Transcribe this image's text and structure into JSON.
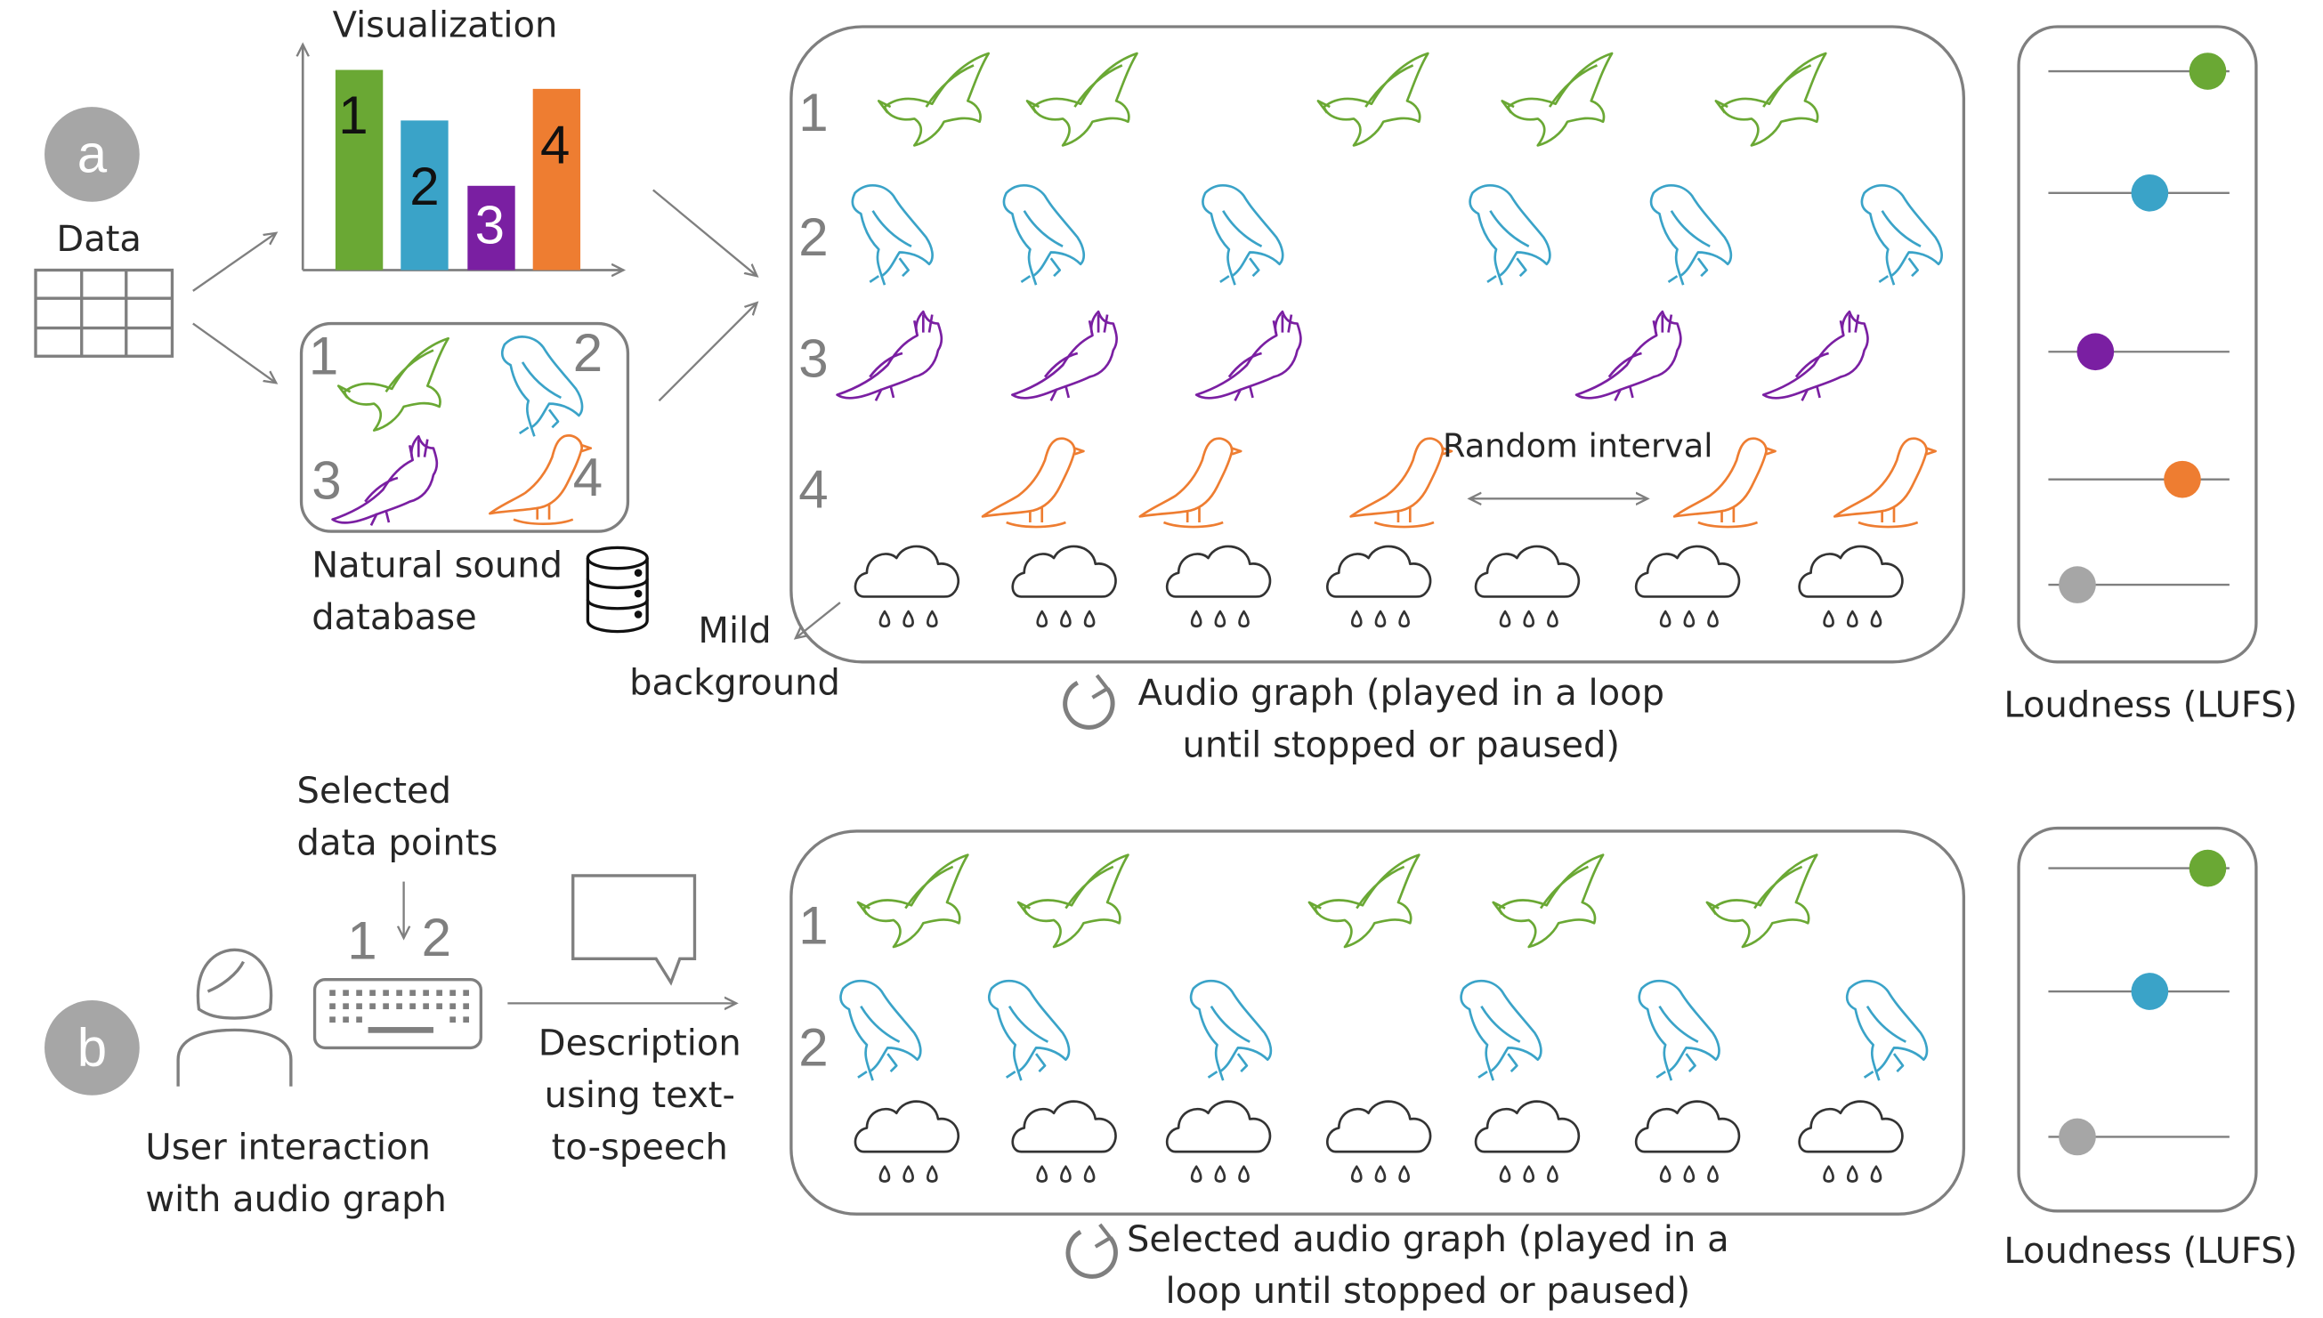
{
  "colors": {
    "green": "#6aa834",
    "blue": "#3aa3c8",
    "purple": "#7a1fa2",
    "orange": "#ee7d31",
    "gray": "#a6a6a6",
    "outline": "#7f7f7f"
  },
  "panel_a": {
    "letter": "a",
    "data_label": "Data",
    "visualization_label": "Visualization",
    "bar_numbers": [
      "1",
      "2",
      "3",
      "4"
    ],
    "database_numbers": [
      "1",
      "2",
      "3",
      "4"
    ],
    "database_label": "Natural sound\ndatabase",
    "row_numbers": [
      "1",
      "2",
      "3",
      "4"
    ],
    "random_interval_label": "Random interval",
    "mild_background_label": "Mild\nbackground",
    "audio_graph_caption": "Audio graph (played in a loop\nuntil stopped or paused)",
    "loudness_label": "Loudness (LUFS)"
  },
  "panel_b": {
    "letter": "b",
    "selected_points_label": "Selected\ndata points",
    "selected_numbers": [
      "1",
      "2"
    ],
    "user_interaction_label": "User interaction\nwith audio graph",
    "description_label": "Description\nusing text-\nto-speech",
    "row_numbers": [
      "1",
      "2"
    ],
    "audio_graph_caption": "Selected audio graph (played in a\nloop until stopped or paused)",
    "loudness_label": "Loudness (LUFS)"
  },
  "icons": {
    "table": "table-icon",
    "database": "database-icon",
    "person": "person-icon",
    "keyboard": "keyboard-icon",
    "speech_bubble": "speech-bubble-icon",
    "loop": "loop-icon",
    "rain_cloud": "rain-cloud-icon",
    "bird_1": "flying-bird-icon",
    "bird_2": "eagle-icon",
    "bird_3": "cockatoo-icon",
    "bird_4": "perched-bird-icon"
  },
  "chart": {
    "bar_levels": [
      0.95,
      0.71,
      0.4,
      0.86
    ],
    "loudness_a": [
      0.88,
      0.56,
      0.26,
      0.74,
      0.16
    ],
    "loudness_b": [
      0.88,
      0.56,
      0.16
    ]
  }
}
